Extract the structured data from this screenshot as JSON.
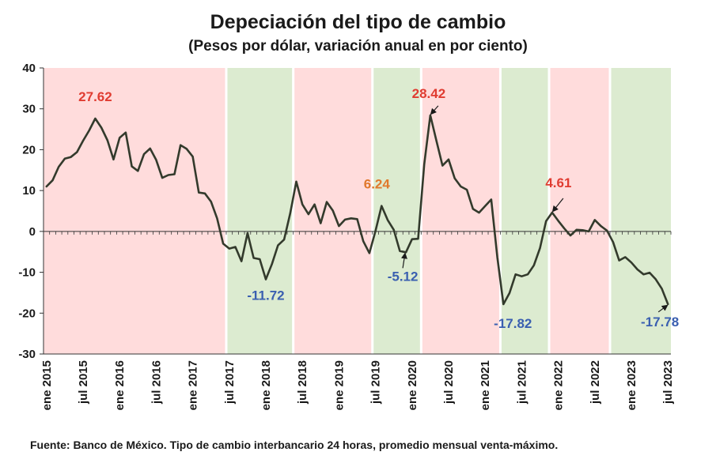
{
  "chart_data": {
    "type": "line",
    "title": "Depeciación del tipo de cambio",
    "subtitle": "(Pesos por dólar, variación anual en por ciento)",
    "footer": "Fuente: Banco de México. Tipo de cambio interbancario 24 horas, promedio mensual venta-máximo.",
    "ylim": [
      -30,
      40
    ],
    "yticks": [
      -30,
      -20,
      -10,
      0,
      10,
      20,
      30,
      40
    ],
    "x_range_months": [
      "2015-01",
      "2023-07"
    ],
    "xtick_labels": [
      {
        "date": "2015-01",
        "label": "ene 2015"
      },
      {
        "date": "2015-07",
        "label": "jul 2015"
      },
      {
        "date": "2016-01",
        "label": "ene 2016"
      },
      {
        "date": "2016-07",
        "label": "jul 2016"
      },
      {
        "date": "2017-01",
        "label": "ene 2017"
      },
      {
        "date": "2017-07",
        "label": "jul 2017"
      },
      {
        "date": "2018-01",
        "label": "ene 2018"
      },
      {
        "date": "2018-07",
        "label": "jul 2018"
      },
      {
        "date": "2019-01",
        "label": "ene 2019"
      },
      {
        "date": "2019-07",
        "label": "jul 2019"
      },
      {
        "date": "2020-01",
        "label": "ene 2020"
      },
      {
        "date": "2020-07",
        "label": "jul 2020"
      },
      {
        "date": "2021-01",
        "label": "ene 2021"
      },
      {
        "date": "2021-07",
        "label": "jul 2021"
      },
      {
        "date": "2022-01",
        "label": "ene 2022"
      },
      {
        "date": "2022-07",
        "label": "jul 2022"
      },
      {
        "date": "2023-01",
        "label": "ene 2023"
      },
      {
        "date": "2023-07",
        "label": "jul 2023"
      }
    ],
    "background_bands": [
      {
        "from": "2015-01",
        "to": "2017-06",
        "phase": "depreciación"
      },
      {
        "from": "2017-07",
        "to": "2018-05",
        "phase": "apreciación"
      },
      {
        "from": "2018-06",
        "to": "2019-06",
        "phase": "depreciación"
      },
      {
        "from": "2019-07",
        "to": "2020-02",
        "phase": "apreciación"
      },
      {
        "from": "2020-03",
        "to": "2021-03",
        "phase": "depreciación"
      },
      {
        "from": "2021-04",
        "to": "2021-11",
        "phase": "apreciación"
      },
      {
        "from": "2021-12",
        "to": "2022-09",
        "phase": "depreciación"
      },
      {
        "from": "2022-10",
        "to": "2023-07",
        "phase": "apreciación"
      }
    ],
    "band_colors": {
      "depreciación": "#ffdcdc",
      "apreciación": "#dcebd0"
    },
    "line_color": "#333a2c",
    "series": [
      {
        "x": [
          "2015-01",
          "2015-02",
          "2015-03",
          "2015-04",
          "2015-05",
          "2015-06",
          "2015-07",
          "2015-08",
          "2015-09",
          "2015-10",
          "2015-11",
          "2015-12",
          "2016-01",
          "2016-02",
          "2016-03",
          "2016-04",
          "2016-05",
          "2016-06",
          "2016-07",
          "2016-08",
          "2016-09",
          "2016-10",
          "2016-11",
          "2016-12",
          "2017-01",
          "2017-02",
          "2017-03",
          "2017-04",
          "2017-05",
          "2017-06",
          "2017-07",
          "2017-08",
          "2017-09",
          "2017-10",
          "2017-11",
          "2017-12",
          "2018-01",
          "2018-02",
          "2018-03",
          "2018-04",
          "2018-05",
          "2018-06",
          "2018-07",
          "2018-08",
          "2018-09",
          "2018-10",
          "2018-11",
          "2018-12",
          "2019-01",
          "2019-02",
          "2019-03",
          "2019-04",
          "2019-05",
          "2019-06",
          "2019-07",
          "2019-08",
          "2019-09",
          "2019-10",
          "2019-11",
          "2019-12",
          "2020-01",
          "2020-02",
          "2020-03",
          "2020-04",
          "2020-05",
          "2020-06",
          "2020-07",
          "2020-08",
          "2020-09",
          "2020-10",
          "2020-11",
          "2020-12",
          "2021-01",
          "2021-02",
          "2021-03",
          "2021-04",
          "2021-05",
          "2021-06",
          "2021-07",
          "2021-08",
          "2021-09",
          "2021-10",
          "2021-11",
          "2021-12",
          "2022-01",
          "2022-02",
          "2022-03",
          "2022-04",
          "2022-05",
          "2022-06",
          "2022-07",
          "2022-08",
          "2022-09",
          "2022-10",
          "2022-11",
          "2022-12",
          "2023-01",
          "2023-02",
          "2023-03",
          "2023-04",
          "2023-05",
          "2023-06",
          "2023-07"
        ],
        "values": [
          11,
          12.5,
          15.8,
          17.8,
          18.2,
          19.4,
          22.2,
          24.7,
          27.62,
          25.4,
          22.3,
          17.6,
          22.9,
          24.2,
          15.9,
          14.8,
          18.9,
          20.3,
          17.5,
          13.1,
          13.8,
          14,
          21.1,
          20.2,
          18.3,
          9.5,
          9.3,
          7.3,
          3.2,
          -3,
          -4.2,
          -3.8,
          -7.3,
          -0.4,
          -6.5,
          -6.8,
          -11.72,
          -8,
          -3.4,
          -2,
          4.4,
          12.2,
          6.6,
          4.2,
          6.6,
          2,
          7.2,
          5.1,
          1.3,
          2.9,
          3.2,
          3,
          -2.4,
          -5.3,
          0.1,
          6.24,
          2.8,
          0.4,
          -4.8,
          -5.12,
          -1.9,
          -1.8,
          16.4,
          28.42,
          22.2,
          16.1,
          17.6,
          13,
          11,
          10.2,
          5.5,
          4.6,
          6.2,
          7.8,
          -6.3,
          -17.82,
          -15.1,
          -10.5,
          -11,
          -10.5,
          -8.3,
          -4.1,
          2.5,
          4.61,
          2.6,
          0.7,
          -1,
          0.4,
          0.3,
          0,
          2.8,
          1.3,
          0.2,
          -2.6,
          -7.1,
          -6.3,
          -7.6,
          -9.3,
          -10.5,
          -10.1,
          -11.7,
          -14,
          -17.78
        ]
      }
    ],
    "annotations": [
      {
        "date": "2015-09",
        "value": 27.62,
        "text": "27.62",
        "color": "#e03c31",
        "arrow": false
      },
      {
        "date": "2018-01",
        "value": -11.72,
        "text": "-11.72",
        "color": "#3a5fb0",
        "arrow": false
      },
      {
        "date": "2019-08",
        "value": 6.24,
        "text": "6.24",
        "color": "#e0792c",
        "arrow": false
      },
      {
        "date": "2019-12",
        "value": -5.12,
        "text": "-5.12",
        "color": "#3a5fb0",
        "arrow": true
      },
      {
        "date": "2020-04",
        "value": 28.42,
        "text": "28.42",
        "color": "#e03c31",
        "arrow": true
      },
      {
        "date": "2021-04",
        "value": -17.82,
        "text": "-17.82",
        "color": "#3a5fb0",
        "arrow": false
      },
      {
        "date": "2021-12",
        "value": 4.61,
        "text": "4.61",
        "color": "#e03c31",
        "arrow": true
      },
      {
        "date": "2023-07",
        "value": -17.78,
        "text": "-17.78",
        "color": "#3a5fb0",
        "arrow": true
      }
    ]
  }
}
